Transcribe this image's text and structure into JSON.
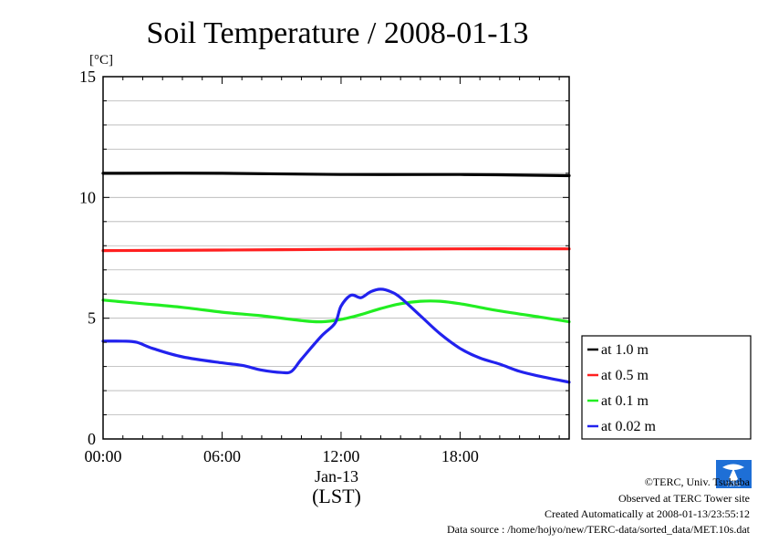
{
  "chart_data": {
    "type": "line",
    "title": "Soil Temperature / 2008-01-13",
    "ylabel": "[°C]",
    "xlabel": "(LST)",
    "date_label": "Jan-13",
    "ylim": [
      0,
      15
    ],
    "xlim": [
      0,
      23.5
    ],
    "y_ticks": [
      "0",
      "5",
      "10",
      "15"
    ],
    "x_ticks": [
      {
        "hour": 0,
        "label": "00:00"
      },
      {
        "hour": 6,
        "label": "06:00"
      },
      {
        "hour": 12,
        "label": "12:00"
      },
      {
        "hour": 18,
        "label": "18:00"
      }
    ],
    "grid": true,
    "legend_position": "bottom-right outside",
    "series": [
      {
        "name": "at 1.0 m",
        "color": "#000000",
        "x": [
          0,
          6,
          12,
          18,
          23.5
        ],
        "y": [
          11.0,
          11.0,
          10.95,
          10.95,
          10.9
        ]
      },
      {
        "name": "at 0.5 m",
        "color": "#ff2020",
        "x": [
          0,
          6,
          12,
          18,
          23.5
        ],
        "y": [
          7.8,
          7.82,
          7.85,
          7.87,
          7.87
        ]
      },
      {
        "name": "at 0.1 m",
        "color": "#22ee22",
        "x": [
          0,
          2,
          4,
          6,
          8,
          10,
          11,
          12,
          13,
          14,
          15,
          16,
          17,
          18,
          19,
          20,
          22,
          23.5
        ],
        "y": [
          5.75,
          5.6,
          5.45,
          5.25,
          5.1,
          4.9,
          4.85,
          4.95,
          5.15,
          5.4,
          5.6,
          5.7,
          5.7,
          5.6,
          5.45,
          5.3,
          5.05,
          4.85
        ]
      },
      {
        "name": "at 0.02 m",
        "color": "#2222ee",
        "x": [
          0,
          1,
          1.7,
          2.5,
          4,
          6,
          7,
          8,
          9,
          9.5,
          10,
          11,
          11.7,
          12,
          12.5,
          13,
          13.5,
          14,
          14.5,
          15,
          16,
          17,
          18,
          19,
          20,
          21,
          22,
          23.5
        ],
        "y": [
          4.05,
          4.05,
          4.0,
          3.75,
          3.4,
          3.15,
          3.05,
          2.85,
          2.75,
          2.8,
          3.3,
          4.25,
          4.8,
          5.5,
          5.95,
          5.85,
          6.1,
          6.2,
          6.1,
          5.85,
          5.1,
          4.35,
          3.75,
          3.35,
          3.1,
          2.8,
          2.6,
          2.35
        ]
      }
    ]
  },
  "logo_text": "TERC",
  "credits": [
    "©TERC, Univ. Tsukuba",
    "Observed at TERC Tower site",
    "Created Automatically at 2008-01-13/23:55:12",
    "Data source : /home/hojyo/new/TERC-data/sorted_data/MET.10s.dat"
  ]
}
